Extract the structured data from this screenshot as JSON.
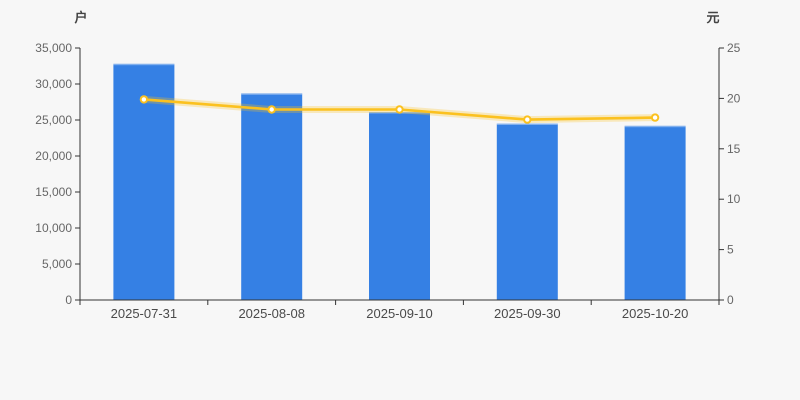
{
  "chart": {
    "left_unit_label": "户",
    "right_unit_label": "元"
  },
  "chart_data": {
    "type": "bar",
    "subtype": "bar+line combo, dual y-axis",
    "title": "",
    "categories": [
      "2025-07-31",
      "2025-08-08",
      "2025-09-10",
      "2025-09-30",
      "2025-10-20"
    ],
    "series": [
      {
        "name": "bar-series",
        "type": "bar",
        "axis": "left",
        "color": "#3580e4",
        "values": [
          32800,
          28700,
          26100,
          24500,
          24200
        ]
      },
      {
        "name": "line-series",
        "type": "line",
        "axis": "right",
        "color": "#fbc11f",
        "marker": "circle-white-fill",
        "values": [
          19.9,
          18.9,
          18.9,
          17.9,
          18.1
        ]
      }
    ],
    "left_axis": {
      "label": "户",
      "min": 0,
      "max": 35000,
      "step": 5000,
      "tick_labels": [
        "0",
        "5,000",
        "10,000",
        "15,000",
        "20,000",
        "25,000",
        "30,000",
        "35,000"
      ]
    },
    "right_axis": {
      "label": "元",
      "min": 0,
      "max": 25,
      "step": 5,
      "tick_labels": [
        "0",
        "5",
        "10",
        "15",
        "20",
        "25"
      ]
    },
    "grid": false,
    "legend": "none",
    "background": "#f7f7f7",
    "axis_color": "#333333"
  }
}
